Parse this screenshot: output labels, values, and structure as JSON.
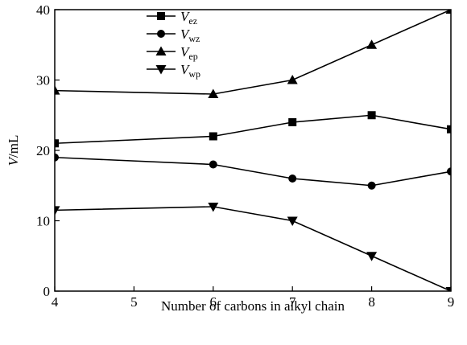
{
  "chart_data": {
    "type": "line",
    "title": "",
    "xlabel": "Number of carbons in alkyl chain",
    "ylabel_var": "V",
    "ylabel_unit": "/mL",
    "x": [
      4,
      6,
      7,
      8,
      9
    ],
    "xlim": [
      4,
      9
    ],
    "ylim": [
      0,
      40
    ],
    "xticks": [
      4,
      5,
      6,
      7,
      8,
      9
    ],
    "yticks": [
      0,
      10,
      20,
      30,
      40
    ],
    "grid": false,
    "legend_position": "top-center",
    "series": [
      {
        "var": "V",
        "sub": "ez",
        "marker": "square",
        "values": [
          21,
          22,
          24,
          25,
          23
        ]
      },
      {
        "var": "V",
        "sub": "wz",
        "marker": "circle",
        "values": [
          19,
          18,
          16,
          15,
          17
        ]
      },
      {
        "var": "V",
        "sub": "ep",
        "marker": "triangle-up",
        "values": [
          28.5,
          28,
          30,
          35,
          40
        ]
      },
      {
        "var": "V",
        "sub": "wp",
        "marker": "triangle-down",
        "values": [
          11.5,
          12,
          10,
          5,
          0
        ]
      }
    ]
  }
}
